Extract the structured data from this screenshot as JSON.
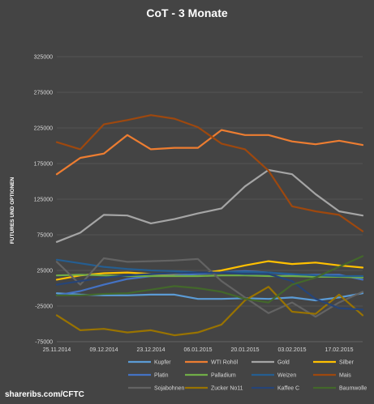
{
  "page": {
    "title": "CoT - 3 Monate",
    "source": "shareribs.com/CFTC"
  },
  "colors": {
    "background": "#444444",
    "grid": "#5a5a5a"
  },
  "chart_data": {
    "type": "line",
    "title": "CoT - 3 Monate",
    "xlabel": "",
    "ylabel": "FUTURES UND OPTIONEN",
    "ylim": [
      -75000,
      325000
    ],
    "yticks": [
      -75000,
      -25000,
      25000,
      75000,
      125000,
      175000,
      225000,
      275000,
      325000
    ],
    "ytick_labels": [
      "-75000",
      "-25000",
      "25000",
      "75000",
      "125000",
      "175000",
      "225000",
      "275000",
      "325000"
    ],
    "x": [
      "25.11.2014",
      "02.12.2014",
      "09.12.2014",
      "16.12.2014",
      "23.12.2014",
      "30.12.2014",
      "06.01.2015",
      "13.01.2015",
      "20.01.2015",
      "27.01.2015",
      "03.02.2015",
      "10.02.2015",
      "17.02.2015",
      "24.02.2015"
    ],
    "xtick_labels": [
      "25.11.2014",
      "09.12.2014",
      "23.12.2014",
      "06.01.2015",
      "20.01.2015",
      "03.02.2015",
      "17.02.2015"
    ],
    "grid": true,
    "legend_position": "bottom",
    "series": [
      {
        "name": "Kupfer",
        "color": "#5b9bd5",
        "values": [
          -7000,
          -9000,
          -10000,
          -10000,
          -9000,
          -9000,
          -15000,
          -15000,
          -14000,
          -15000,
          -13000,
          -17000,
          -13000,
          -7000
        ]
      },
      {
        "name": "WTI Rohöl",
        "color": "#ed7d31",
        "values": [
          160000,
          183000,
          189000,
          215000,
          195000,
          197000,
          197000,
          222000,
          215000,
          215000,
          206000,
          202000,
          207000,
          201000
        ]
      },
      {
        "name": "Gold",
        "color": "#a5a5a5",
        "values": [
          65000,
          78000,
          103000,
          102000,
          91000,
          97000,
          105000,
          112000,
          143000,
          166000,
          160000,
          132000,
          108000,
          102000
        ]
      },
      {
        "name": "Silber",
        "color": "#ffc000",
        "values": [
          12000,
          18000,
          21000,
          22000,
          20000,
          19000,
          20000,
          25000,
          32000,
          38000,
          34000,
          36000,
          32000,
          29000
        ]
      },
      {
        "name": "Platin",
        "color": "#4472c4",
        "values": [
          -10000,
          -4000,
          5000,
          13000,
          17000,
          18000,
          20000,
          22000,
          24000,
          22000,
          19000,
          19000,
          19000,
          12000
        ]
      },
      {
        "name": "Palladium",
        "color": "#70ad47",
        "values": [
          18000,
          19000,
          18000,
          17000,
          17000,
          17000,
          17000,
          18000,
          18000,
          17000,
          17000,
          16000,
          16000,
          15000
        ]
      },
      {
        "name": "Weizen",
        "color": "#255e91",
        "values": [
          40000,
          35000,
          30000,
          27000,
          25000,
          24000,
          22000,
          22000,
          23000,
          22000,
          20000,
          18000,
          17000,
          17000
        ]
      },
      {
        "name": "Mais",
        "color": "#9e480e",
        "values": [
          205000,
          195000,
          230000,
          236000,
          243000,
          238000,
          226000,
          203000,
          195000,
          165000,
          115000,
          108000,
          103000,
          80000
        ]
      },
      {
        "name": "Sojabohnen",
        "color": "#636363",
        "values": [
          37000,
          5000,
          42000,
          37000,
          38000,
          39000,
          41000,
          10000,
          -13000,
          -35000,
          -20000,
          -40000,
          -20000,
          -5000
        ]
      },
      {
        "name": "Zucker No11",
        "color": "#997300",
        "values": [
          -38000,
          -59000,
          -57000,
          -62000,
          -59000,
          -66000,
          -62000,
          -51000,
          -17000,
          2000,
          -33000,
          -36000,
          -9000,
          -38000
        ]
      },
      {
        "name": "Kaffee C",
        "color": "#264478",
        "values": [
          5000,
          10000,
          15000,
          18000,
          20000,
          21000,
          22000,
          22000,
          20000,
          20000,
          10000,
          -15000,
          -28000,
          -30000
        ]
      },
      {
        "name": "Baumwolle",
        "color": "#43682b",
        "values": [
          -10000,
          -10000,
          -8000,
          -7000,
          -2000,
          3000,
          0,
          -5000,
          -15000,
          -20000,
          5000,
          15000,
          30000,
          45000
        ]
      }
    ]
  }
}
